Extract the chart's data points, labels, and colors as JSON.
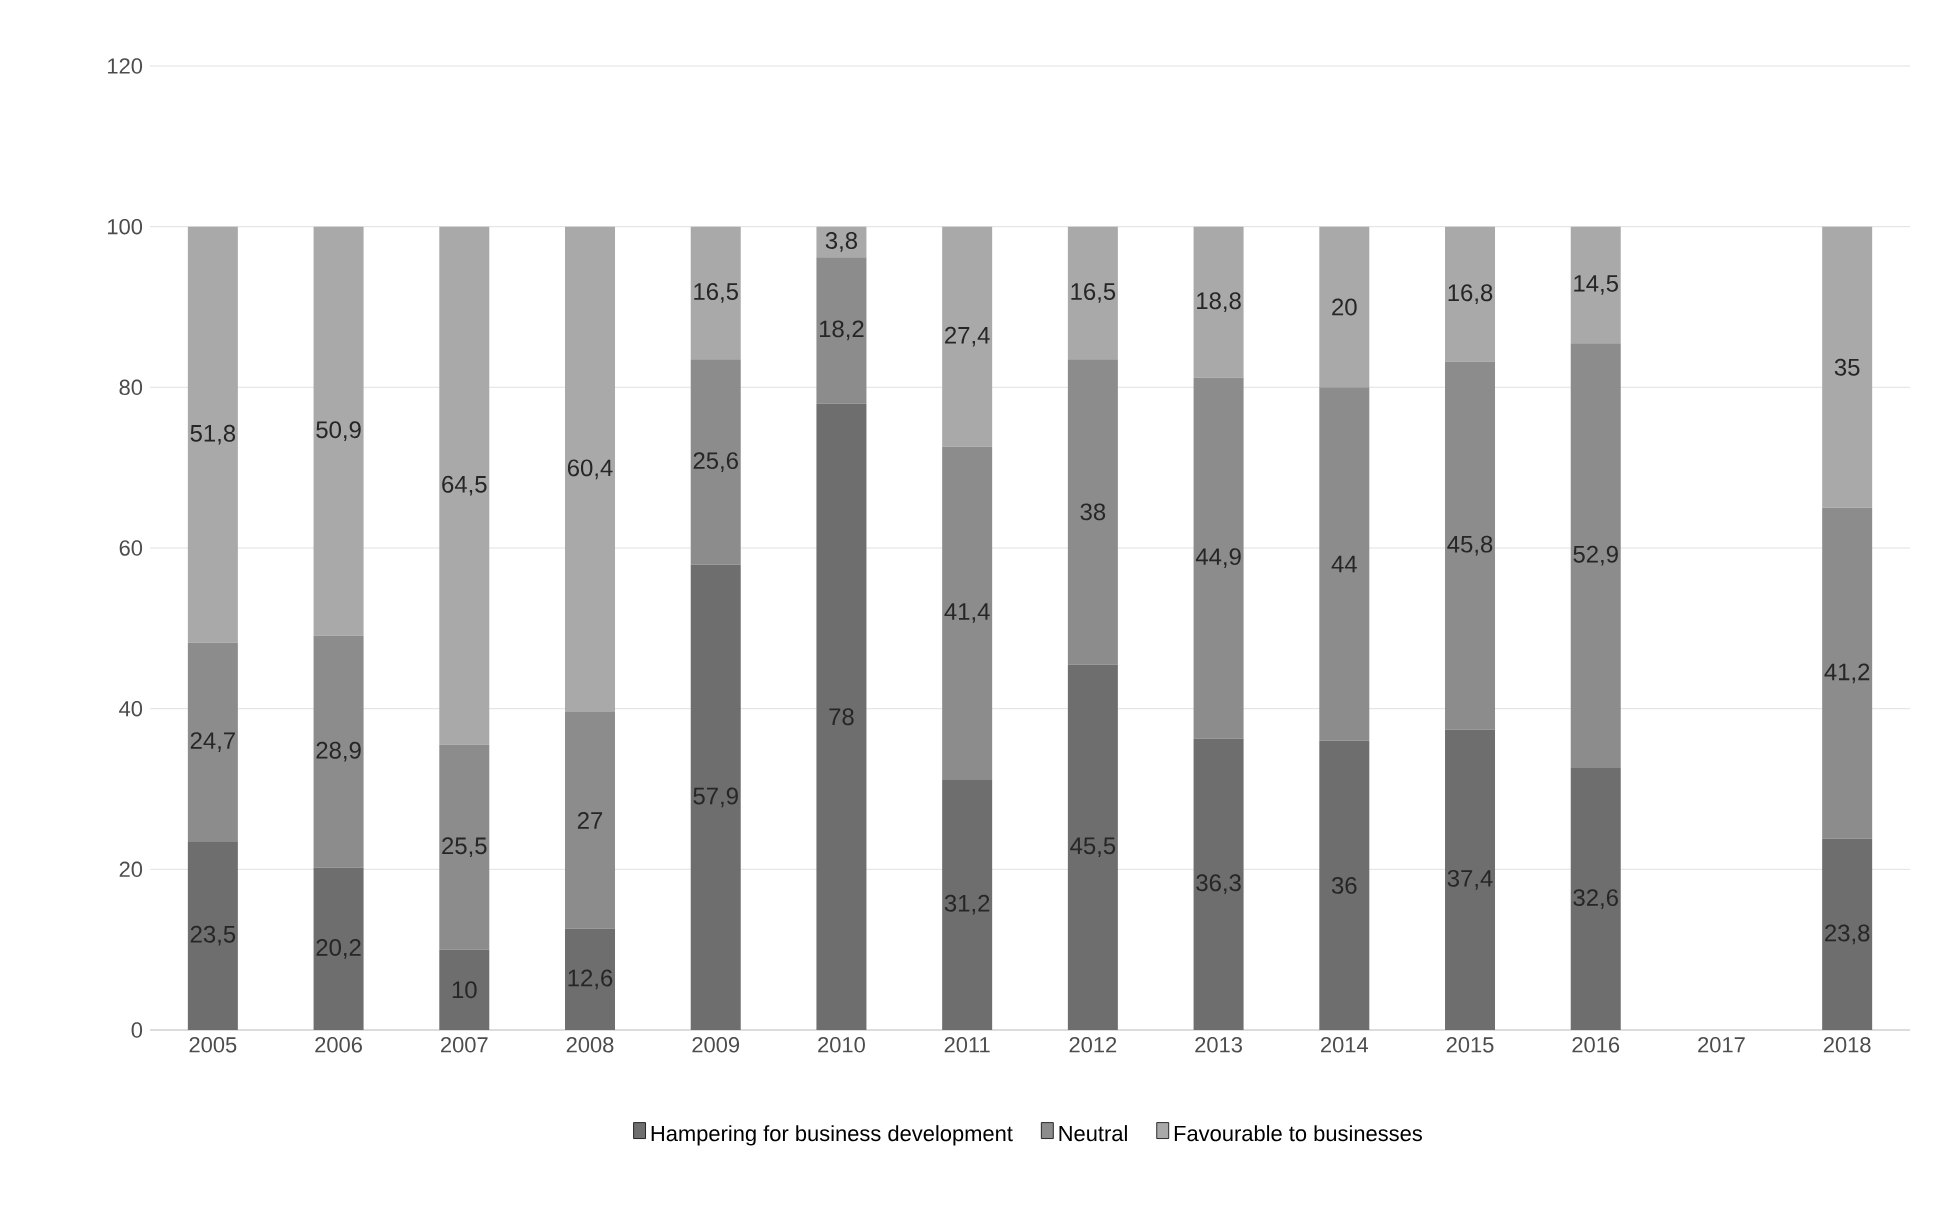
{
  "chart_data": {
    "type": "bar",
    "stacked": true,
    "categories": [
      "2005",
      "2006",
      "2007",
      "2008",
      "2009",
      "2010",
      "2011",
      "2012",
      "2013",
      "2014",
      "2015",
      "2016",
      "2017",
      "2018"
    ],
    "series": [
      {
        "name": "Hampering for business development",
        "color": "#6e6e6e",
        "values": [
          23.5,
          20.2,
          10,
          12.6,
          57.9,
          78,
          31.2,
          45.5,
          36.3,
          36,
          37.4,
          32.6,
          null,
          23.8
        ],
        "value_labels": [
          "23,5",
          "20,2",
          "10",
          "12,6",
          "57,9",
          "78",
          "31,2",
          "45,5",
          "36,3",
          "36",
          "37,4",
          "32,6",
          null,
          "23,8"
        ]
      },
      {
        "name": "Neutral",
        "color": "#8c8c8c",
        "values": [
          24.7,
          28.9,
          25.5,
          27,
          25.6,
          18.2,
          41.4,
          38,
          44.9,
          44,
          45.8,
          52.9,
          null,
          41.2
        ],
        "value_labels": [
          "24,7",
          "28,9",
          "25,5",
          "27",
          "25,6",
          "18,2",
          "41,4",
          "38",
          "44,9",
          "44",
          "45,8",
          "52,9",
          null,
          "41,2"
        ]
      },
      {
        "name": "Favourable to businesses",
        "color": "#a9a9a9",
        "values": [
          51.8,
          50.9,
          64.5,
          60.4,
          16.5,
          3.8,
          27.4,
          16.5,
          18.8,
          20,
          16.8,
          14.5,
          null,
          35
        ],
        "value_labels": [
          "51,8",
          "50,9",
          "64,5",
          "60,4",
          "16,5",
          "3,8",
          "27,4",
          "16,5",
          "18,8",
          "20",
          "16,8",
          "14,5",
          null,
          "35"
        ]
      }
    ],
    "ylim": [
      0,
      120
    ],
    "yticks": [
      0,
      20,
      40,
      60,
      80,
      100,
      120
    ],
    "grid": "y",
    "legend": "bottom"
  }
}
